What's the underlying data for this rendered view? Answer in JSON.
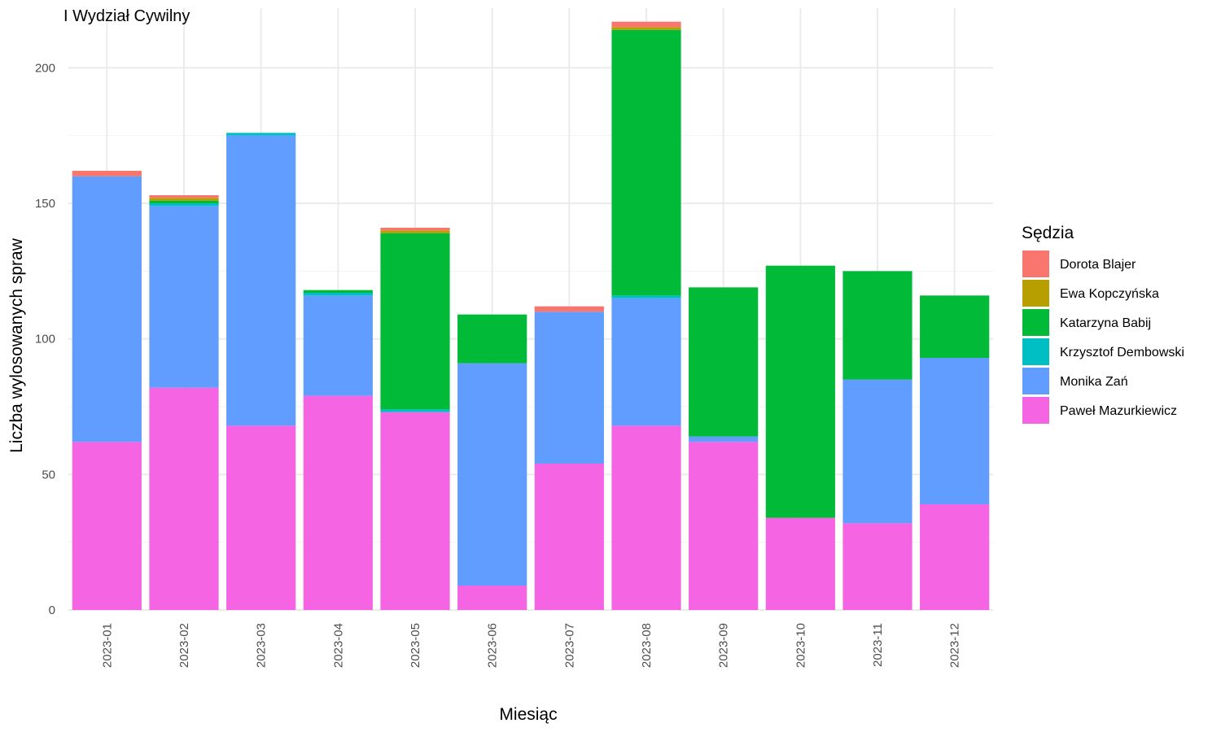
{
  "chart_data": {
    "type": "bar",
    "stacked": true,
    "title": "I Wydział Cywilny",
    "xlabel": "Miesiąc",
    "ylabel": "Liczba wylosowanych spraw",
    "ylim": [
      0,
      222
    ],
    "yticks": [
      0,
      50,
      100,
      150,
      200
    ],
    "grid": true,
    "legend_title": "Sędzia",
    "legend_position": "right",
    "categories": [
      "2023-01",
      "2023-02",
      "2023-03",
      "2023-04",
      "2023-05",
      "2023-06",
      "2023-07",
      "2023-08",
      "2023-09",
      "2023-10",
      "2023-11",
      "2023-12"
    ],
    "series": [
      {
        "name": "Paweł Mazurkiewicz",
        "color": "#F564E3",
        "values": [
          62,
          82,
          68,
          79,
          73,
          9,
          54,
          68,
          62,
          34,
          32,
          39
        ]
      },
      {
        "name": "Monika Zań",
        "color": "#619CFF",
        "values": [
          98,
          67,
          107,
          37,
          0,
          82,
          56,
          47,
          2,
          0,
          53,
          54
        ]
      },
      {
        "name": "Krzysztof Dembowski",
        "color": "#00BFC4",
        "values": [
          0,
          1,
          1,
          1,
          1,
          0,
          0,
          1,
          0,
          0,
          0,
          0
        ]
      },
      {
        "name": "Katarzyna Babij",
        "color": "#00BA38",
        "values": [
          0,
          1,
          0,
          1,
          65,
          18,
          0,
          98,
          55,
          93,
          40,
          23
        ]
      },
      {
        "name": "Ewa Kopczyńska",
        "color": "#B79F00",
        "values": [
          0,
          1,
          0,
          0,
          1,
          0,
          0,
          1,
          0,
          0,
          0,
          0
        ]
      },
      {
        "name": "Dorota Blajer",
        "color": "#F8766D",
        "values": [
          2,
          1,
          0,
          0,
          1,
          0,
          2,
          2,
          0,
          0,
          0,
          0
        ]
      }
    ],
    "legend_order": [
      "Dorota Blajer",
      "Ewa Kopczyńska",
      "Katarzyna Babij",
      "Krzysztof Dembowski",
      "Monika Zań",
      "Paweł Mazurkiewicz"
    ]
  }
}
